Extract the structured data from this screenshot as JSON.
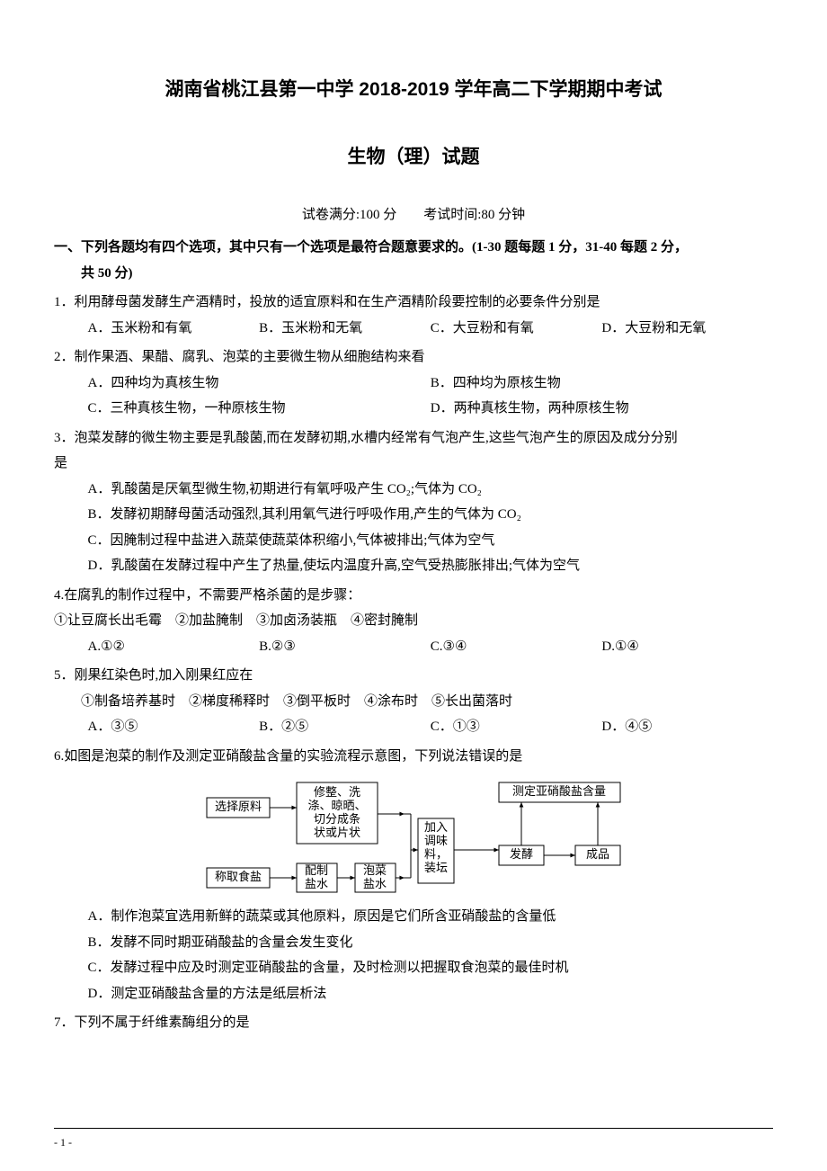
{
  "title_main": "湖南省桃江县第一中学 2018-2019 学年高二下学期期中考试",
  "title_sub": "生物（理）试题",
  "meta": "试卷满分:100 分　　考试时间:80 分钟",
  "section_heading_line1": "一、下列各题均有四个选项，其中只有一个选项是最符合题意要求的。(1-30 题每题 1 分，31-40 每题 2 分，",
  "section_heading_line2": "共 50 分)",
  "q1": {
    "text": "1．利用酵母菌发酵生产酒精时，投放的适宜原料和在生产酒精阶段要控制的必要条件分别是",
    "opts": [
      "A．玉米粉和有氧",
      "B．玉米粉和无氧",
      "C．大豆粉和有氧",
      "D．大豆粉和无氧"
    ]
  },
  "q2": {
    "text": "2．制作果酒、果醋、腐乳、泡菜的主要微生物从细胞结构来看",
    "opts": [
      "A．四种均为真核生物",
      "B．四种均为原核生物",
      "C．三种真核生物，一种原核生物",
      "D．两种真核生物，两种原核生物"
    ]
  },
  "q3": {
    "text": "3．泡菜发酵的微生物主要是乳酸菌,而在发酵初期,水槽内经常有气泡产生,这些气泡产生的原因及成分分别",
    "text_cont": "是",
    "opts": [
      "A．乳酸菌是厌氧型微生物,初期进行有氧呼吸产生 CO₂;气体为 CO₂",
      "B．发酵初期酵母菌活动强烈,其利用氧气进行呼吸作用,产生的气体为 CO₂",
      "C．因腌制过程中盐进入蔬菜使蔬菜体积缩小,气体被排出;气体为空气",
      "D．乳酸菌在发酵过程中产生了热量,使坛内温度升高,空气受热膨胀排出;气体为空气"
    ]
  },
  "q4": {
    "text": "4.在腐乳的制作过程中，不需要严格杀菌的是步骤：",
    "sub": "①让豆腐长出毛霉　②加盐腌制　③加卤汤装瓶　④密封腌制",
    "opts": [
      "A.①②",
      "B.②③",
      "C.③④",
      "D.①④"
    ]
  },
  "q5": {
    "text": "5．刚果红染色时,加入刚果红应在",
    "sub": "①制备培养基时　②梯度稀释时　③倒平板时　④涂布时　⑤长出菌落时",
    "opts": [
      "A．③⑤",
      "B．②⑤",
      "C．①③",
      "D．④⑤"
    ]
  },
  "q6": {
    "text": "6.如图是泡菜的制作及测定亚硝酸盐含量的实验流程示意图，下列说法错误的是",
    "opts": [
      "A．制作泡菜宜选用新鲜的蔬菜或其他原料，原因是它们所含亚硝酸盐的含量低",
      "B．发酵不同时期亚硝酸盐的含量会发生变化",
      "C．发酵过程中应及时测定亚硝酸盐的含量，及时检测以把握取食泡菜的最佳时机",
      "D．测定亚硝酸盐含量的方法是纸层析法"
    ]
  },
  "q7": {
    "text": "7．下列不属于纤维素酶组分的是"
  },
  "diagram": {
    "boxes": {
      "b1": "选择原料",
      "b2": "修整、洗\n涤、晾晒、\n切分成条\n状或片状",
      "b3": "测定亚硝酸盐含量",
      "b4": "称取食盐",
      "b5": "配制\n盐水",
      "b6": "泡菜\n盐水",
      "b7": "加入\n调味\n料，\n装坛",
      "b8": "发酵",
      "b9": "成品"
    },
    "stroke": "#000000",
    "fill": "#ffffff",
    "font_size": 13
  },
  "footer": "- 1 -"
}
